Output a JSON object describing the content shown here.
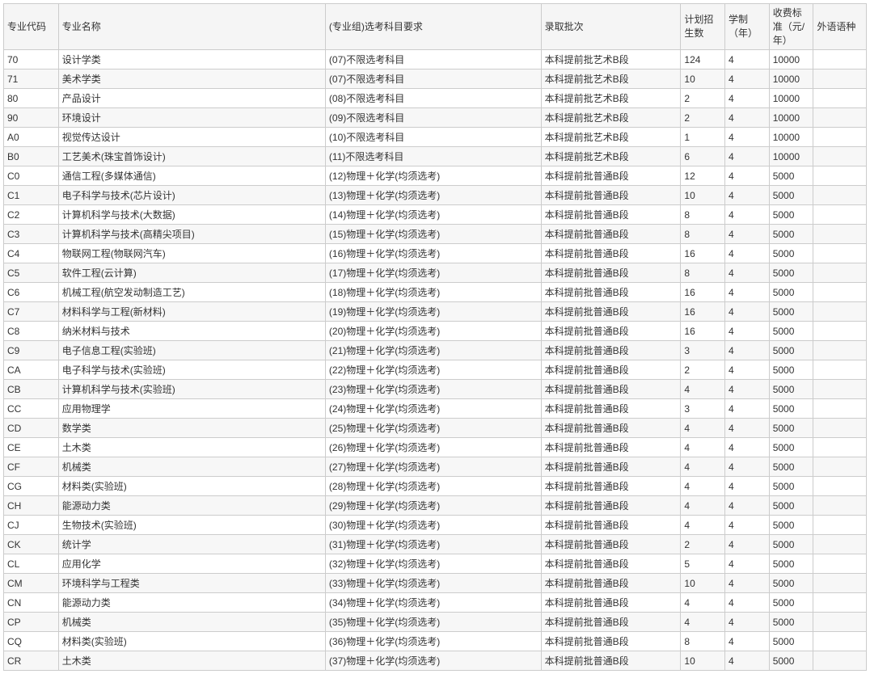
{
  "table": {
    "columns": [
      {
        "key": "code",
        "label": "专业代码",
        "class": "col-code"
      },
      {
        "key": "name",
        "label": "专业名称",
        "class": "col-name"
      },
      {
        "key": "requirement",
        "label": "(专业组)选考科目要求",
        "class": "col-requirement"
      },
      {
        "key": "batch",
        "label": "录取批次",
        "class": "col-batch"
      },
      {
        "key": "plan",
        "label": "计划招生数",
        "class": "col-plan"
      },
      {
        "key": "duration",
        "label": "学制（年）",
        "class": "col-duration"
      },
      {
        "key": "fee",
        "label": "收费标准（元/年）",
        "class": "col-fee"
      },
      {
        "key": "lang",
        "label": "外语语种",
        "class": "col-lang"
      }
    ],
    "rows": [
      {
        "code": "70",
        "name": "设计学类",
        "requirement": "(07)不限选考科目",
        "batch": "本科提前批艺术B段",
        "plan": "124",
        "duration": "4",
        "fee": "10000",
        "lang": ""
      },
      {
        "code": "71",
        "name": "美术学类",
        "requirement": "(07)不限选考科目",
        "batch": "本科提前批艺术B段",
        "plan": "10",
        "duration": "4",
        "fee": "10000",
        "lang": ""
      },
      {
        "code": "80",
        "name": "产品设计",
        "requirement": "(08)不限选考科目",
        "batch": "本科提前批艺术B段",
        "plan": "2",
        "duration": "4",
        "fee": "10000",
        "lang": ""
      },
      {
        "code": "90",
        "name": "环境设计",
        "requirement": "(09)不限选考科目",
        "batch": "本科提前批艺术B段",
        "plan": "2",
        "duration": "4",
        "fee": "10000",
        "lang": ""
      },
      {
        "code": "A0",
        "name": "视觉传达设计",
        "requirement": "(10)不限选考科目",
        "batch": "本科提前批艺术B段",
        "plan": "1",
        "duration": "4",
        "fee": "10000",
        "lang": ""
      },
      {
        "code": "B0",
        "name": "工艺美术(珠宝首饰设计)",
        "requirement": "(11)不限选考科目",
        "batch": "本科提前批艺术B段",
        "plan": "6",
        "duration": "4",
        "fee": "10000",
        "lang": ""
      },
      {
        "code": "C0",
        "name": "通信工程(多媒体通信)",
        "requirement": "(12)物理＋化学(均须选考)",
        "batch": "本科提前批普通B段",
        "plan": "12",
        "duration": "4",
        "fee": "5000",
        "lang": ""
      },
      {
        "code": "C1",
        "name": "电子科学与技术(芯片设计)",
        "requirement": "(13)物理＋化学(均须选考)",
        "batch": "本科提前批普通B段",
        "plan": "10",
        "duration": "4",
        "fee": "5000",
        "lang": ""
      },
      {
        "code": "C2",
        "name": "计算机科学与技术(大数据)",
        "requirement": "(14)物理＋化学(均须选考)",
        "batch": "本科提前批普通B段",
        "plan": "8",
        "duration": "4",
        "fee": "5000",
        "lang": ""
      },
      {
        "code": "C3",
        "name": "计算机科学与技术(高精尖项目)",
        "requirement": "(15)物理＋化学(均须选考)",
        "batch": "本科提前批普通B段",
        "plan": "8",
        "duration": "4",
        "fee": "5000",
        "lang": ""
      },
      {
        "code": "C4",
        "name": "物联网工程(物联网汽车)",
        "requirement": "(16)物理＋化学(均须选考)",
        "batch": "本科提前批普通B段",
        "plan": "16",
        "duration": "4",
        "fee": "5000",
        "lang": ""
      },
      {
        "code": "C5",
        "name": "软件工程(云计算)",
        "requirement": "(17)物理＋化学(均须选考)",
        "batch": "本科提前批普通B段",
        "plan": "8",
        "duration": "4",
        "fee": "5000",
        "lang": ""
      },
      {
        "code": "C6",
        "name": "机械工程(航空发动制造工艺)",
        "requirement": "(18)物理＋化学(均须选考)",
        "batch": "本科提前批普通B段",
        "plan": "16",
        "duration": "4",
        "fee": "5000",
        "lang": ""
      },
      {
        "code": "C7",
        "name": "材料科学与工程(新材料)",
        "requirement": "(19)物理＋化学(均须选考)",
        "batch": "本科提前批普通B段",
        "plan": "16",
        "duration": "4",
        "fee": "5000",
        "lang": ""
      },
      {
        "code": "C8",
        "name": "纳米材料与技术",
        "requirement": "(20)物理＋化学(均须选考)",
        "batch": "本科提前批普通B段",
        "plan": "16",
        "duration": "4",
        "fee": "5000",
        "lang": ""
      },
      {
        "code": "C9",
        "name": "电子信息工程(实验班)",
        "requirement": "(21)物理＋化学(均须选考)",
        "batch": "本科提前批普通B段",
        "plan": "3",
        "duration": "4",
        "fee": "5000",
        "lang": ""
      },
      {
        "code": "CA",
        "name": "电子科学与技术(实验班)",
        "requirement": "(22)物理＋化学(均须选考)",
        "batch": "本科提前批普通B段",
        "plan": "2",
        "duration": "4",
        "fee": "5000",
        "lang": ""
      },
      {
        "code": "CB",
        "name": "计算机科学与技术(实验班)",
        "requirement": "(23)物理＋化学(均须选考)",
        "batch": "本科提前批普通B段",
        "plan": "4",
        "duration": "4",
        "fee": "5000",
        "lang": ""
      },
      {
        "code": "CC",
        "name": "应用物理学",
        "requirement": "(24)物理＋化学(均须选考)",
        "batch": "本科提前批普通B段",
        "plan": "3",
        "duration": "4",
        "fee": "5000",
        "lang": ""
      },
      {
        "code": "CD",
        "name": "数学类",
        "requirement": "(25)物理＋化学(均须选考)",
        "batch": "本科提前批普通B段",
        "plan": "4",
        "duration": "4",
        "fee": "5000",
        "lang": ""
      },
      {
        "code": "CE",
        "name": "土木类",
        "requirement": "(26)物理＋化学(均须选考)",
        "batch": "本科提前批普通B段",
        "plan": "4",
        "duration": "4",
        "fee": "5000",
        "lang": ""
      },
      {
        "code": "CF",
        "name": "机械类",
        "requirement": "(27)物理＋化学(均须选考)",
        "batch": "本科提前批普通B段",
        "plan": "4",
        "duration": "4",
        "fee": "5000",
        "lang": ""
      },
      {
        "code": "CG",
        "name": "材料类(实验班)",
        "requirement": "(28)物理＋化学(均须选考)",
        "batch": "本科提前批普通B段",
        "plan": "4",
        "duration": "4",
        "fee": "5000",
        "lang": ""
      },
      {
        "code": "CH",
        "name": "能源动力类",
        "requirement": "(29)物理＋化学(均须选考)",
        "batch": "本科提前批普通B段",
        "plan": "4",
        "duration": "4",
        "fee": "5000",
        "lang": ""
      },
      {
        "code": "CJ",
        "name": "生物技术(实验班)",
        "requirement": "(30)物理＋化学(均须选考)",
        "batch": "本科提前批普通B段",
        "plan": "4",
        "duration": "4",
        "fee": "5000",
        "lang": ""
      },
      {
        "code": "CK",
        "name": "统计学",
        "requirement": "(31)物理＋化学(均须选考)",
        "batch": "本科提前批普通B段",
        "plan": "2",
        "duration": "4",
        "fee": "5000",
        "lang": ""
      },
      {
        "code": "CL",
        "name": "应用化学",
        "requirement": "(32)物理＋化学(均须选考)",
        "batch": "本科提前批普通B段",
        "plan": "5",
        "duration": "4",
        "fee": "5000",
        "lang": ""
      },
      {
        "code": "CM",
        "name": "环境科学与工程类",
        "requirement": "(33)物理＋化学(均须选考)",
        "batch": "本科提前批普通B段",
        "plan": "10",
        "duration": "4",
        "fee": "5000",
        "lang": ""
      },
      {
        "code": "CN",
        "name": "能源动力类",
        "requirement": "(34)物理＋化学(均须选考)",
        "batch": "本科提前批普通B段",
        "plan": "4",
        "duration": "4",
        "fee": "5000",
        "lang": ""
      },
      {
        "code": "CP",
        "name": "机械类",
        "requirement": "(35)物理＋化学(均须选考)",
        "batch": "本科提前批普通B段",
        "plan": "4",
        "duration": "4",
        "fee": "5000",
        "lang": ""
      },
      {
        "code": "CQ",
        "name": "材料类(实验班)",
        "requirement": "(36)物理＋化学(均须选考)",
        "batch": "本科提前批普通B段",
        "plan": "8",
        "duration": "4",
        "fee": "5000",
        "lang": ""
      },
      {
        "code": "CR",
        "name": "土木类",
        "requirement": "(37)物理＋化学(均须选考)",
        "batch": "本科提前批普通B段",
        "plan": "10",
        "duration": "4",
        "fee": "5000",
        "lang": ""
      }
    ]
  },
  "style": {
    "border_color": "#cccccc",
    "header_bg": "#f5f5f5",
    "row_odd_bg": "#ffffff",
    "row_even_bg": "#f7f7f7",
    "text_color": "#333333",
    "font_size": 12
  }
}
